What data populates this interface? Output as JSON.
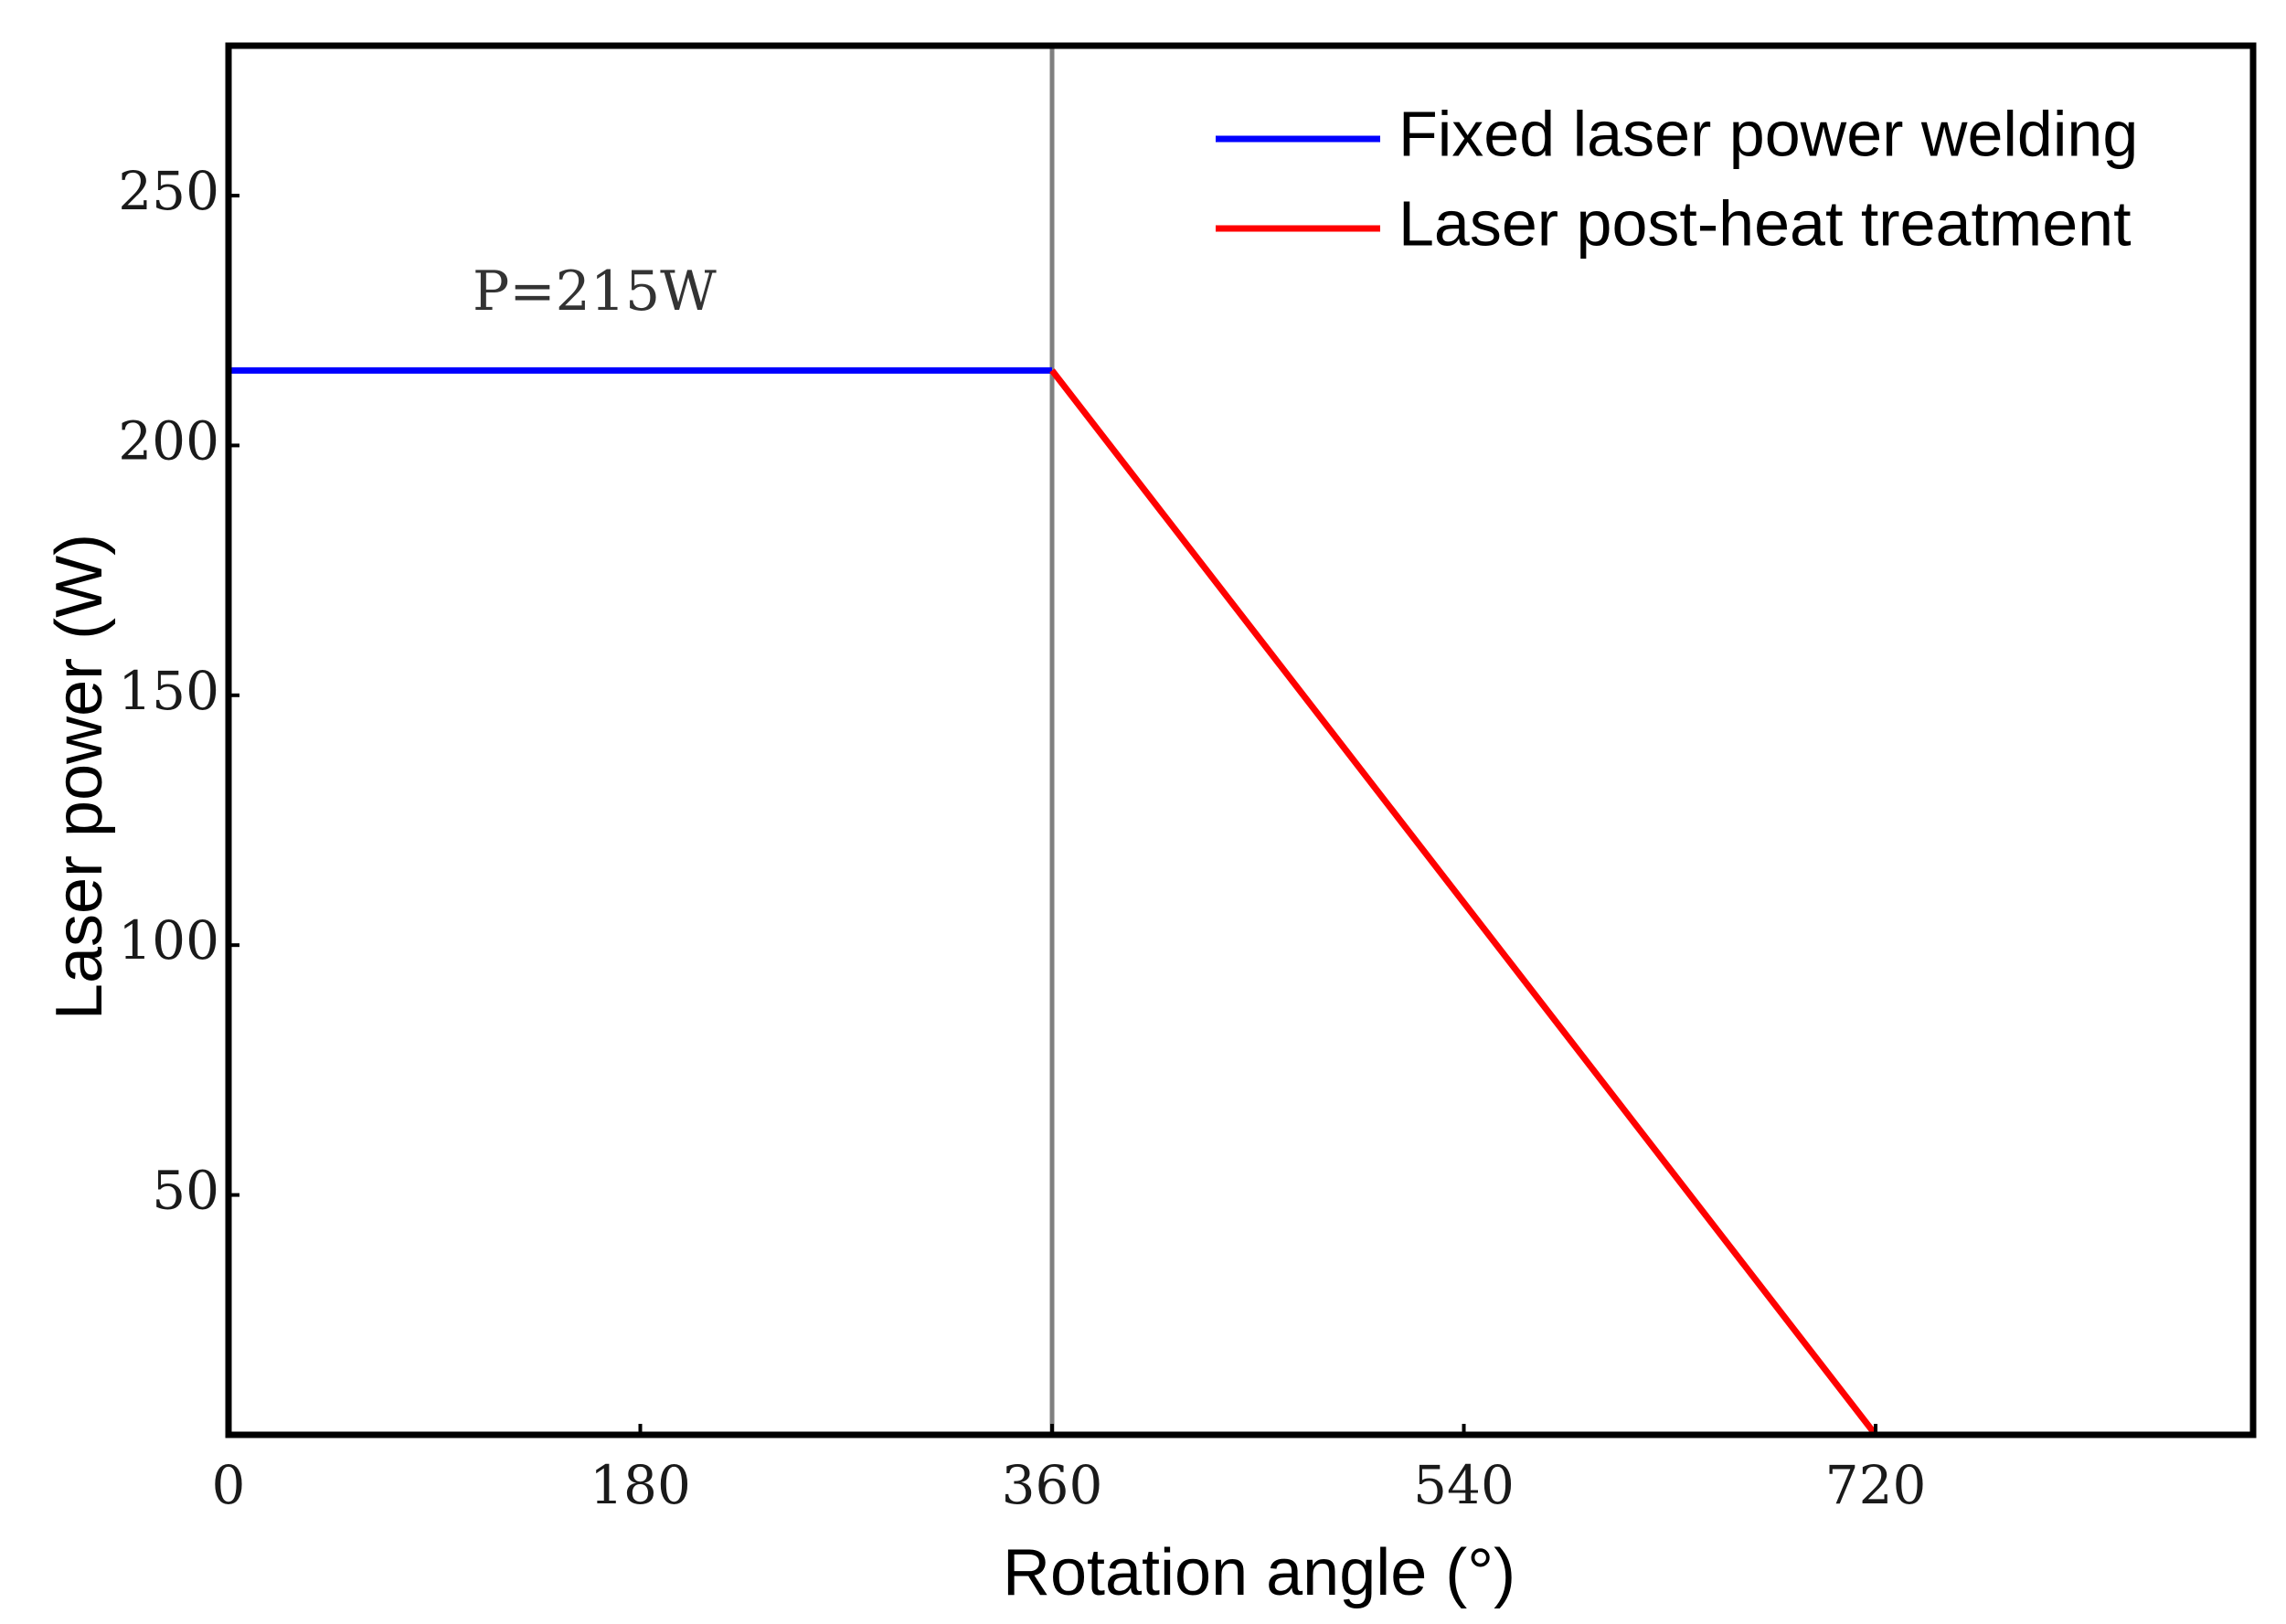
{
  "chart_data": {
    "type": "line",
    "xlabel": "Rotation angle (°)",
    "ylabel": "Laser power  (W)",
    "xlim": [
      0,
      885
    ],
    "ylim": [
      2,
      280
    ],
    "xticks": [
      0,
      180,
      360,
      540,
      720
    ],
    "yticks": [
      50,
      100,
      150,
      200,
      250
    ],
    "xtick_labels": [
      "0",
      "180",
      "360",
      "540",
      "720"
    ],
    "ytick_labels": [
      "50",
      "100",
      "150",
      "200",
      "250"
    ],
    "grid": false,
    "legend_position": "top-right",
    "series": [
      {
        "name": "Fixed laser power welding",
        "color": "#0000ff",
        "x": [
          0,
          360
        ],
        "y": [
          215,
          215
        ]
      },
      {
        "name": "Laser post-heat treatment",
        "color": "#ff0000",
        "x": [
          360,
          720
        ],
        "y": [
          215,
          2
        ]
      }
    ],
    "vertical_lines": [
      {
        "x": 360,
        "color": "#808080"
      }
    ],
    "annotations": [
      {
        "text": "P=215W",
        "x": 160,
        "y": 230
      }
    ]
  }
}
